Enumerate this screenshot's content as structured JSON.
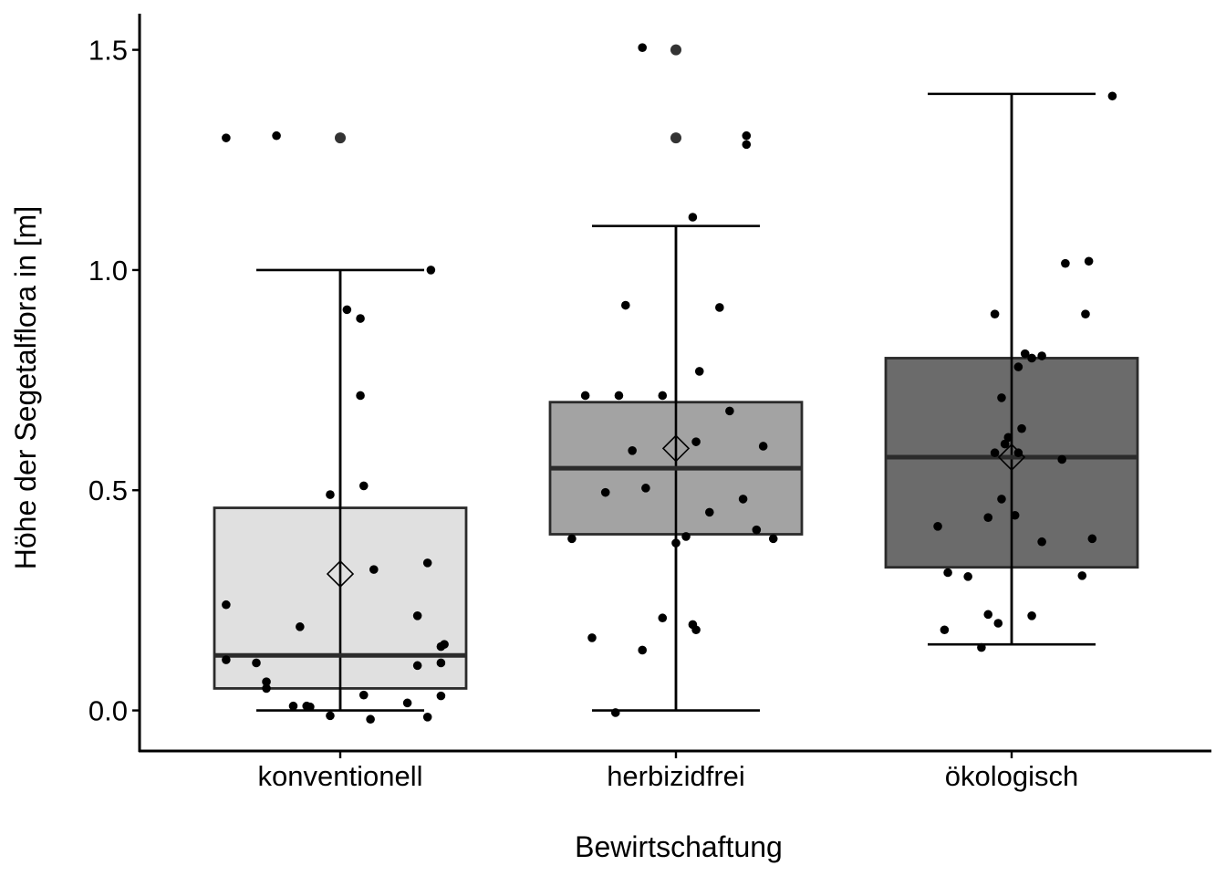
{
  "chart_data": {
    "type": "box",
    "xlabel": "Bewirtschaftung",
    "ylabel": "Höhe der Segetalflora in [m]",
    "ylim": [
      -0.09,
      1.58
    ],
    "yticks": [
      0.0,
      0.5,
      1.0,
      1.5
    ],
    "ytick_labels": [
      "0.0",
      "0.5",
      "1.0",
      "1.5"
    ],
    "grid": false,
    "categories": [
      "konventionell",
      "herbizidfrei",
      "ökologisch"
    ],
    "boxes": [
      {
        "category": "konventionell",
        "fill": "#e0e0e0",
        "q1": 0.05,
        "median": 0.125,
        "q3": 0.46,
        "whisker_low": 0.0,
        "whisker_high": 1.0,
        "mean": 0.31,
        "outliers": [
          1.3
        ]
      },
      {
        "category": "herbizidfrei",
        "fill": "#a3a3a3",
        "q1": 0.4,
        "median": 0.55,
        "q3": 0.7,
        "whisker_low": 0.0,
        "whisker_high": 1.1,
        "mean": 0.595,
        "outliers": [
          1.3,
          1.5
        ]
      },
      {
        "category": "ökologisch",
        "fill": "#6b6b6b",
        "q1": 0.325,
        "median": 0.575,
        "q3": 0.8,
        "whisker_low": 0.15,
        "whisker_high": 1.4,
        "mean": 0.575,
        "outliers": []
      }
    ],
    "jitter_points": [
      {
        "category": "konventionell",
        "points": [
          {
            "dx": -0.34,
            "y": 1.3
          },
          {
            "dx": -0.19,
            "y": 1.305
          },
          {
            "dx": 0.27,
            "y": 1.0
          },
          {
            "dx": 0.02,
            "y": 0.91
          },
          {
            "dx": 0.06,
            "y": 0.89
          },
          {
            "dx": 0.06,
            "y": 0.715
          },
          {
            "dx": 0.07,
            "y": 0.51
          },
          {
            "dx": -0.03,
            "y": 0.49
          },
          {
            "dx": 0.26,
            "y": 0.335
          },
          {
            "dx": 0.1,
            "y": 0.32
          },
          {
            "dx": -0.34,
            "y": 0.24
          },
          {
            "dx": 0.23,
            "y": 0.215
          },
          {
            "dx": -0.12,
            "y": 0.19
          },
          {
            "dx": 0.31,
            "y": 0.15
          },
          {
            "dx": 0.3,
            "y": 0.145
          },
          {
            "dx": -0.34,
            "y": 0.115
          },
          {
            "dx": -0.25,
            "y": 0.108
          },
          {
            "dx": 0.3,
            "y": 0.108
          },
          {
            "dx": 0.23,
            "y": 0.102
          },
          {
            "dx": -0.22,
            "y": 0.065
          },
          {
            "dx": -0.22,
            "y": 0.05
          },
          {
            "dx": 0.07,
            "y": 0.035
          },
          {
            "dx": 0.3,
            "y": 0.033
          },
          {
            "dx": 0.2,
            "y": 0.017
          },
          {
            "dx": -0.14,
            "y": 0.01
          },
          {
            "dx": -0.1,
            "y": 0.01
          },
          {
            "dx": -0.09,
            "y": 0.008
          },
          {
            "dx": -0.03,
            "y": -0.012
          },
          {
            "dx": 0.09,
            "y": -0.02
          },
          {
            "dx": 0.26,
            "y": -0.015
          }
        ]
      },
      {
        "category": "herbizidfrei",
        "points": [
          {
            "dx": -0.1,
            "y": 1.505
          },
          {
            "dx": 0.21,
            "y": 1.305
          },
          {
            "dx": 0.21,
            "y": 1.285
          },
          {
            "dx": 0.05,
            "y": 1.12
          },
          {
            "dx": -0.15,
            "y": 0.92
          },
          {
            "dx": 0.13,
            "y": 0.915
          },
          {
            "dx": 0.07,
            "y": 0.77
          },
          {
            "dx": -0.27,
            "y": 0.715
          },
          {
            "dx": -0.17,
            "y": 0.715
          },
          {
            "dx": -0.04,
            "y": 0.715
          },
          {
            "dx": 0.16,
            "y": 0.68
          },
          {
            "dx": 0.06,
            "y": 0.61
          },
          {
            "dx": -0.13,
            "y": 0.59
          },
          {
            "dx": 0.26,
            "y": 0.6
          },
          {
            "dx": -0.09,
            "y": 0.505
          },
          {
            "dx": -0.21,
            "y": 0.495
          },
          {
            "dx": 0.2,
            "y": 0.48
          },
          {
            "dx": 0.1,
            "y": 0.45
          },
          {
            "dx": 0.24,
            "y": 0.41
          },
          {
            "dx": 0.03,
            "y": 0.395
          },
          {
            "dx": 0.29,
            "y": 0.39
          },
          {
            "dx": -0.31,
            "y": 0.39
          },
          {
            "dx": 0.0,
            "y": 0.38
          },
          {
            "dx": -0.25,
            "y": 0.165
          },
          {
            "dx": -0.04,
            "y": 0.21
          },
          {
            "dx": 0.05,
            "y": 0.195
          },
          {
            "dx": 0.06,
            "y": 0.183
          },
          {
            "dx": -0.1,
            "y": 0.137
          },
          {
            "dx": -0.18,
            "y": -0.005
          }
        ]
      },
      {
        "category": "ökologisch",
        "points": [
          {
            "dx": 0.3,
            "y": 1.395
          },
          {
            "dx": 0.23,
            "y": 1.02
          },
          {
            "dx": 0.16,
            "y": 1.015
          },
          {
            "dx": -0.05,
            "y": 0.9
          },
          {
            "dx": 0.22,
            "y": 0.9
          },
          {
            "dx": 0.04,
            "y": 0.81
          },
          {
            "dx": 0.09,
            "y": 0.805
          },
          {
            "dx": 0.06,
            "y": 0.8
          },
          {
            "dx": 0.02,
            "y": 0.78
          },
          {
            "dx": -0.03,
            "y": 0.71
          },
          {
            "dx": 0.03,
            "y": 0.64
          },
          {
            "dx": -0.01,
            "y": 0.62
          },
          {
            "dx": -0.02,
            "y": 0.605
          },
          {
            "dx": -0.05,
            "y": 0.585
          },
          {
            "dx": 0.02,
            "y": 0.585
          },
          {
            "dx": 0.15,
            "y": 0.57
          },
          {
            "dx": -0.03,
            "y": 0.48
          },
          {
            "dx": 0.01,
            "y": 0.443
          },
          {
            "dx": -0.07,
            "y": 0.438
          },
          {
            "dx": -0.22,
            "y": 0.418
          },
          {
            "dx": 0.24,
            "y": 0.39
          },
          {
            "dx": 0.09,
            "y": 0.383
          },
          {
            "dx": -0.19,
            "y": 0.313
          },
          {
            "dx": -0.13,
            "y": 0.304
          },
          {
            "dx": 0.21,
            "y": 0.306
          },
          {
            "dx": -0.07,
            "y": 0.218
          },
          {
            "dx": 0.06,
            "y": 0.215
          },
          {
            "dx": -0.04,
            "y": 0.198
          },
          {
            "dx": -0.2,
            "y": 0.183
          },
          {
            "dx": -0.09,
            "y": 0.143
          }
        ]
      }
    ]
  }
}
